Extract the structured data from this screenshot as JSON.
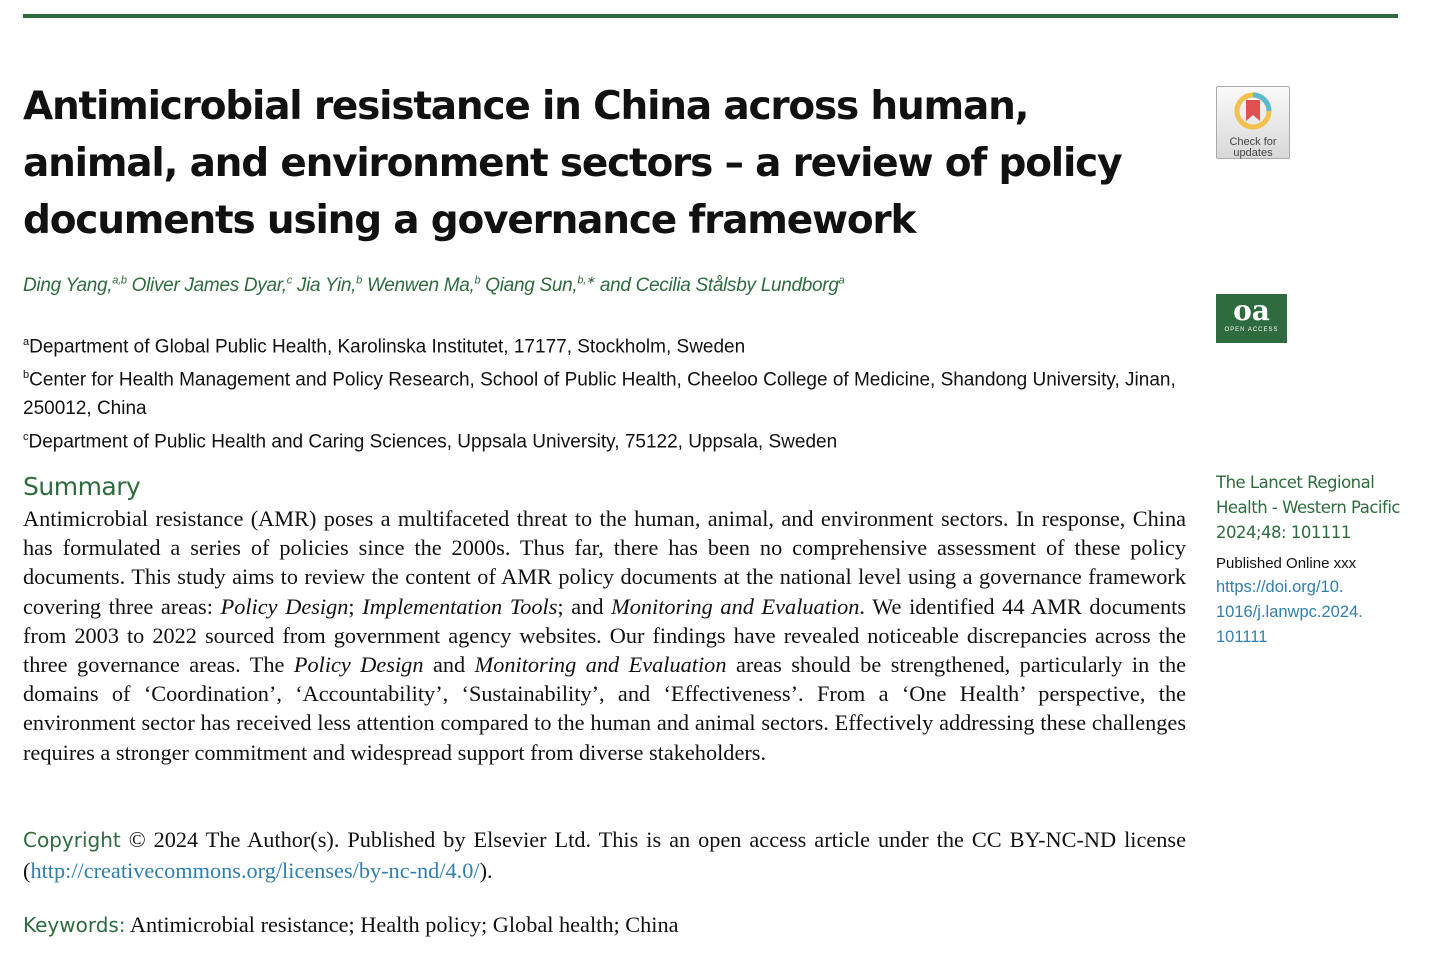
{
  "title": "Antimicrobial resistance in China across human, animal, and environment sectors – a review of policy documents using a governance framework",
  "authors": [
    {
      "name": "Ding Yang,",
      "sup": "a,b"
    },
    {
      "name": " Oliver James Dyar,",
      "sup": "c"
    },
    {
      "name": " Jia Yin,",
      "sup": "b"
    },
    {
      "name": " Wenwen Ma,",
      "sup": "b"
    },
    {
      "name": " Qiang Sun,",
      "sup": "b,∗"
    },
    {
      "name": " and Cecilia Stålsby Lundborg",
      "sup": "a"
    }
  ],
  "affiliations": [
    {
      "sup": "a",
      "text": "Department of Global Public Health, Karolinska Institutet, 17177, Stockholm, Sweden"
    },
    {
      "sup": "b",
      "text": "Center for Health Management and Policy Research, School of Public Health, Cheeloo College of Medicine, Shandong University, Jinan, 250012, China"
    },
    {
      "sup": "c",
      "text": "Department of Public Health and Caring Sciences, Uppsala University, 75122, Uppsala, Sweden"
    }
  ],
  "summary": {
    "heading": "Summary",
    "parts": [
      "Antimicrobial resistance (AMR) poses a multifaceted threat to the human, animal, and environment sectors. In response, China has formulated a series of policies since the 2000s. Thus far, there has been no comprehensive assessment of these policy documents. This study aims to review the content of AMR policy documents at the national level using a governance framework covering three areas: ",
      "Policy Design",
      "; ",
      "Implementation Tools",
      "; and ",
      "Monitoring and Evaluation",
      ". We identified 44 AMR documents from 2003 to 2022 sourced from government agency websites. Our findings have revealed noticeable discrepancies across the three governance areas. The ",
      "Policy Design",
      " and ",
      "Monitoring and Evaluation",
      " areas should be strengthened, particularly in the domains of ‘Coordination’, ‘Accountability’, ‘Sustainability’, and ‘Effectiveness’. From a ‘One Health’ perspective, the environment sector has received less attention compared to the human and animal sectors. Effectively addressing these challenges requires a stronger commitment and widespread support from diverse stakeholders."
    ]
  },
  "copyright": {
    "label": "Copyright",
    "text": " © 2024 The Author(s). Published by Elsevier Ltd. This is an open access article under the CC BY-NC-ND license (",
    "link": "http://creativecommons.org/licenses/by-nc-nd/4.0/",
    "end": ")."
  },
  "keywords": {
    "label": "Keywords:",
    "text": " Antimicrobial resistance; Health policy; Global health; China"
  },
  "badges": {
    "check_updates": [
      "Check for",
      "updates"
    ],
    "oa_big": "oa",
    "oa_small": "OPEN ACCESS"
  },
  "sidebar": {
    "journal": [
      "The Lancet Regional",
      "Health - Western Pacific",
      "2024;48: 101111"
    ],
    "published": "Published Online xxx",
    "doi": [
      "https://doi.org/10.",
      "1016/j.lanwpc.2024.",
      "101111"
    ]
  },
  "colors": {
    "accent": "#2e6b3e",
    "link": "#2f7fae"
  }
}
